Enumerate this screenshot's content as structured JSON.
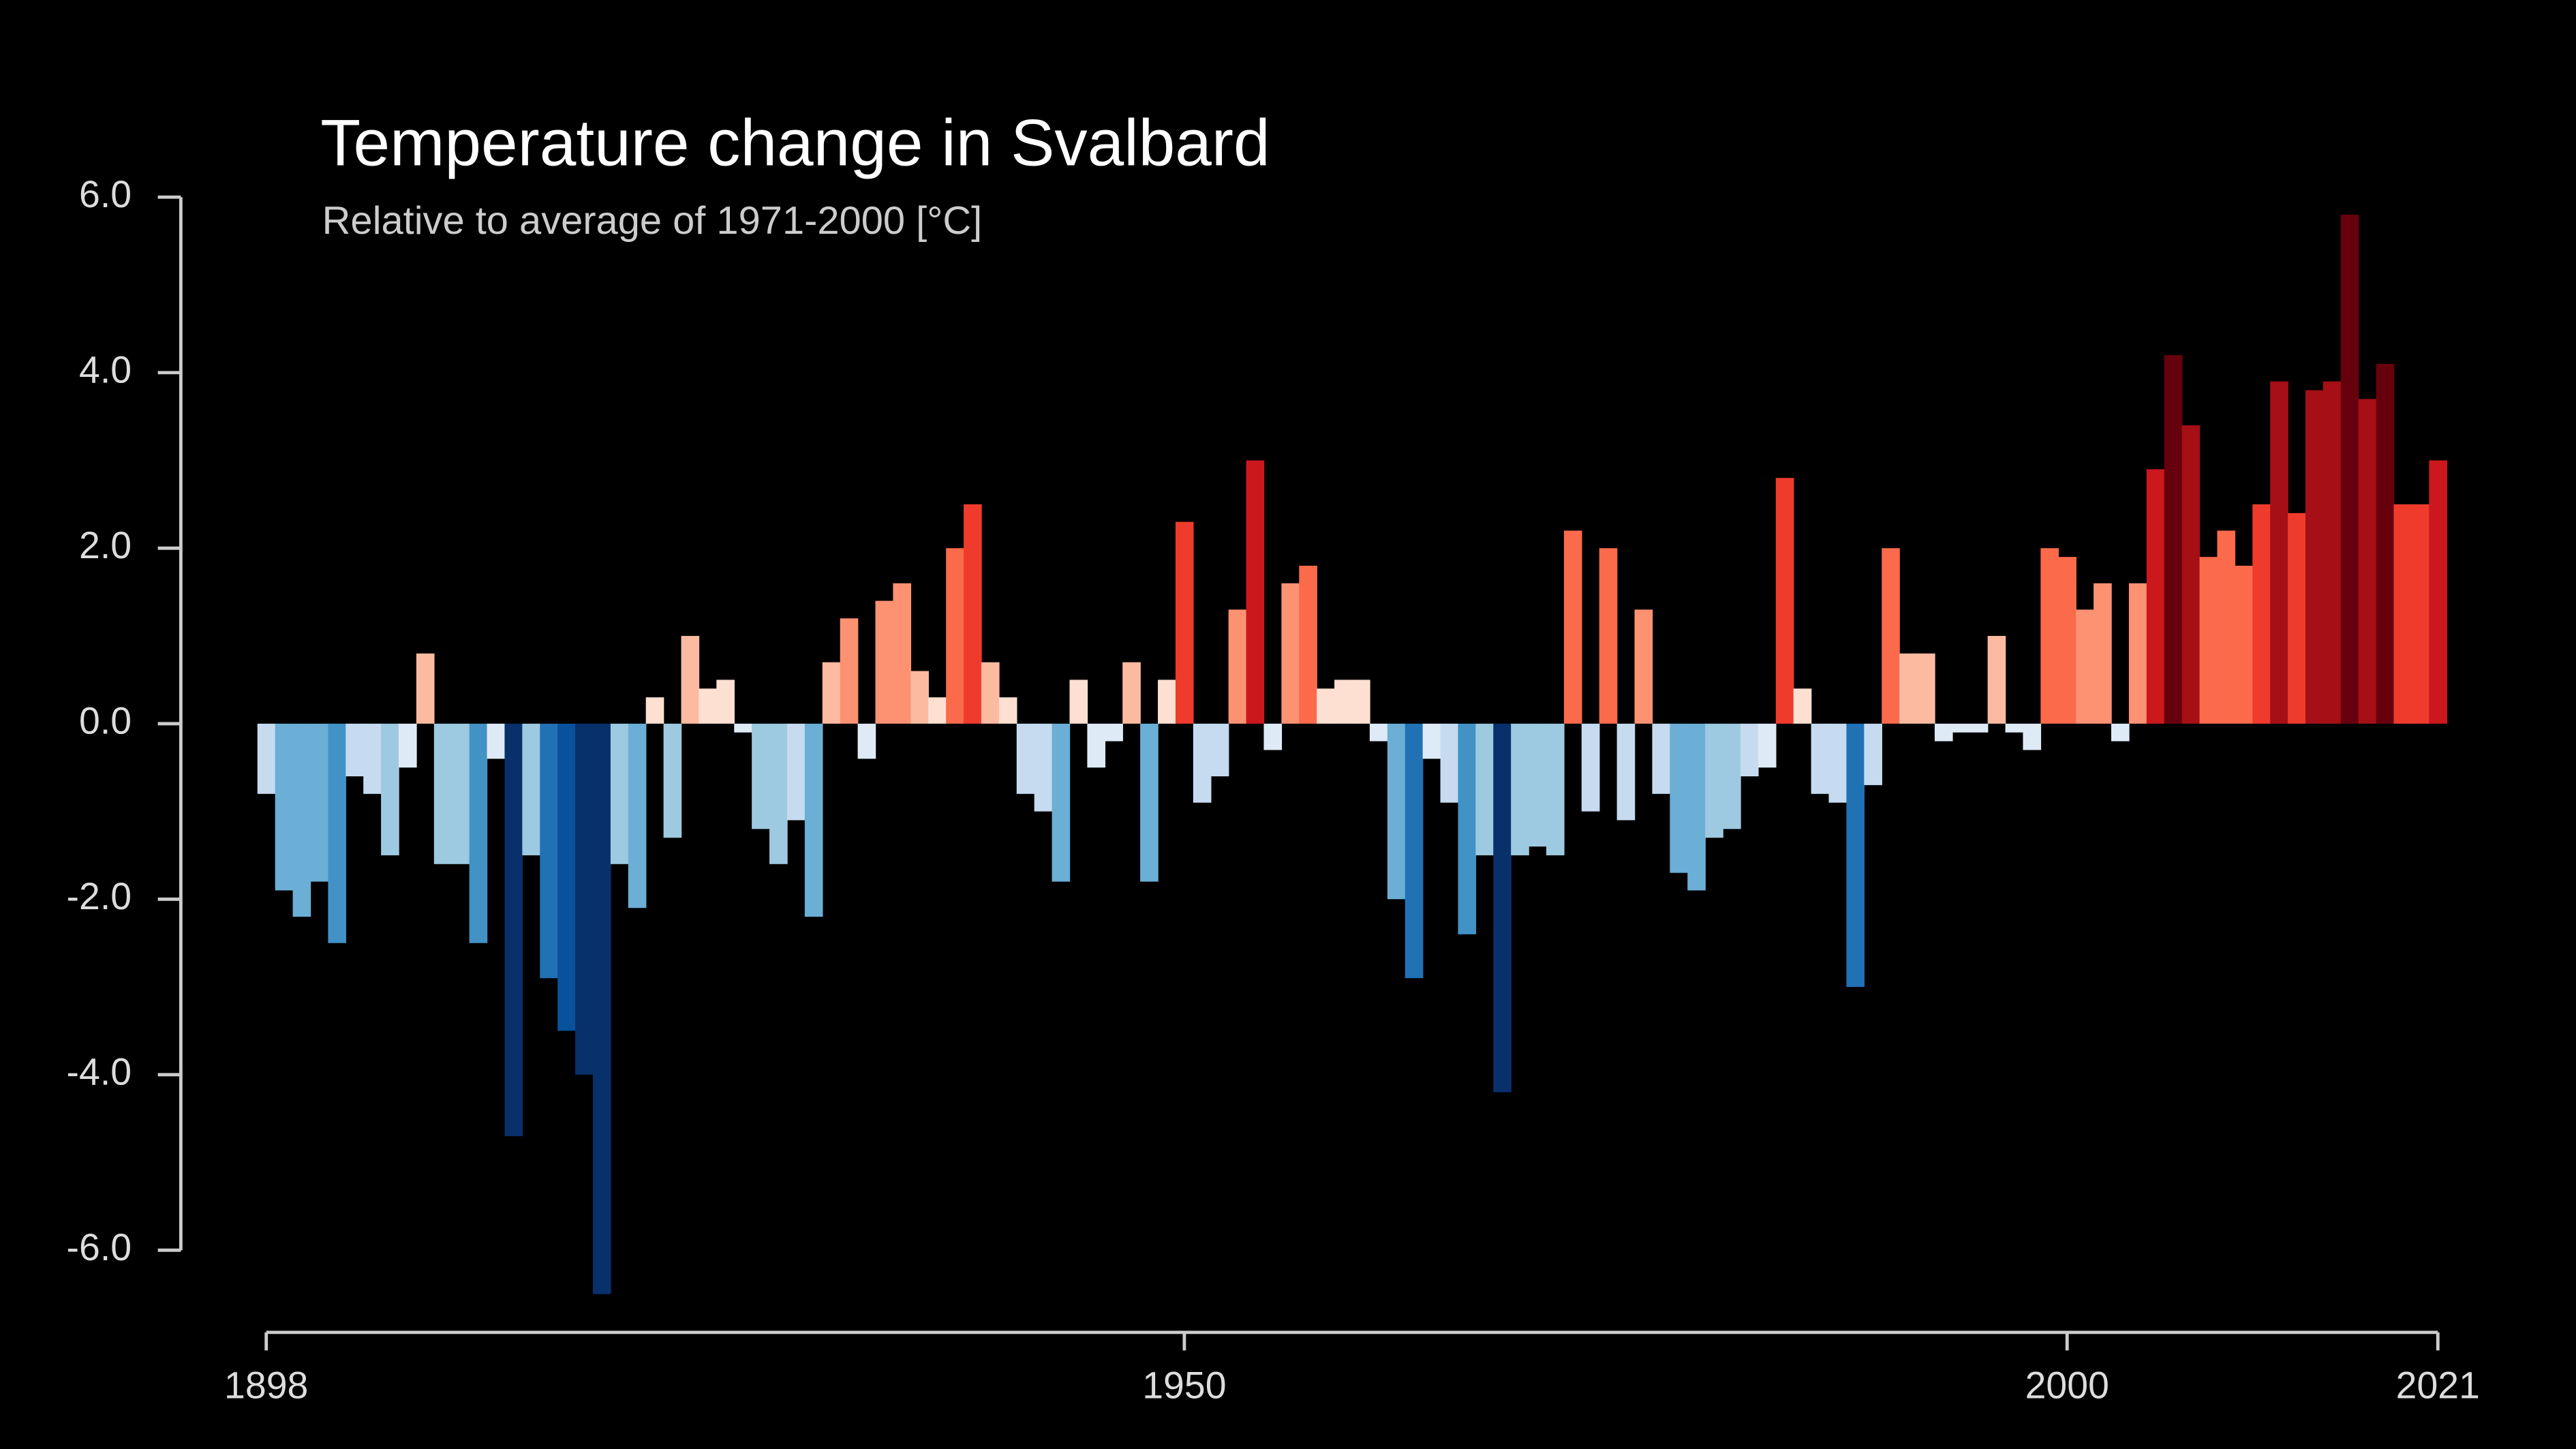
{
  "chart_data": {
    "type": "bar",
    "title": "Temperature change in Svalbard",
    "subtitle": "Relative to average of 1971-2000  [°C]",
    "x": [
      1898,
      1899,
      1900,
      1901,
      1902,
      1903,
      1904,
      1905,
      1906,
      1907,
      1908,
      1909,
      1910,
      1911,
      1912,
      1913,
      1914,
      1915,
      1916,
      1917,
      1918,
      1919,
      1920,
      1921,
      1922,
      1923,
      1924,
      1925,
      1926,
      1927,
      1928,
      1929,
      1930,
      1931,
      1932,
      1933,
      1934,
      1935,
      1936,
      1937,
      1938,
      1939,
      1940,
      1941,
      1942,
      1943,
      1944,
      1945,
      1946,
      1947,
      1948,
      1949,
      1950,
      1951,
      1952,
      1953,
      1954,
      1955,
      1956,
      1957,
      1958,
      1959,
      1960,
      1961,
      1962,
      1963,
      1964,
      1965,
      1966,
      1967,
      1968,
      1969,
      1970,
      1971,
      1972,
      1973,
      1974,
      1975,
      1976,
      1977,
      1978,
      1979,
      1980,
      1981,
      1982,
      1983,
      1984,
      1985,
      1986,
      1987,
      1988,
      1989,
      1990,
      1991,
      1992,
      1993,
      1994,
      1995,
      1996,
      1997,
      1998,
      1999,
      2000,
      2001,
      2002,
      2003,
      2004,
      2005,
      2006,
      2007,
      2008,
      2009,
      2010,
      2011,
      2012,
      2013,
      2014,
      2015,
      2016,
      2017,
      2018,
      2019,
      2020,
      2021
    ],
    "values": [
      -0.8,
      -1.9,
      -2.2,
      -1.8,
      -2.5,
      -0.6,
      -0.8,
      -1.5,
      -0.5,
      0.8,
      -1.6,
      -1.6,
      -2.5,
      -0.4,
      -4.7,
      -1.5,
      -2.9,
      -3.5,
      -4.0,
      -6.5,
      -1.6,
      -2.1,
      0.3,
      -1.3,
      1.0,
      0.4,
      0.5,
      -0.1,
      -1.2,
      -1.6,
      -1.1,
      -2.2,
      0.7,
      1.2,
      -0.4,
      1.4,
      1.6,
      0.6,
      0.3,
      2.0,
      2.5,
      0.7,
      0.3,
      -0.8,
      -1.0,
      -1.8,
      0.5,
      -0.5,
      -0.2,
      0.7,
      -1.8,
      0.5,
      2.3,
      -0.9,
      -0.6,
      1.3,
      3.0,
      -0.3,
      1.6,
      1.8,
      0.4,
      0.5,
      0.5,
      -0.2,
      -2.0,
      -2.9,
      -0.4,
      -0.9,
      -2.4,
      -1.5,
      -4.2,
      -1.5,
      -1.4,
      -1.5,
      2.2,
      -1.0,
      2.0,
      -1.1,
      1.3,
      -0.8,
      -1.7,
      -1.9,
      -1.3,
      -1.2,
      -0.6,
      -0.5,
      2.8,
      0.4,
      -0.8,
      -0.9,
      -3.0,
      -0.7,
      2.0,
      0.8,
      0.8,
      -0.2,
      -0.1,
      -0.1,
      1.0,
      -0.1,
      -0.3,
      2.0,
      1.9,
      1.3,
      1.6,
      -0.2,
      1.6,
      2.9,
      4.2,
      3.4,
      1.9,
      2.2,
      1.8,
      2.5,
      3.9,
      2.4,
      3.8,
      3.9,
      5.8,
      3.7,
      4.1,
      2.5,
      2.5,
      3.0
    ],
    "colors": [
      "#08306b",
      "#08519c",
      "#2171b5",
      "#4292c6",
      "#6baed6",
      "#9ecae1",
      "#c6dbef",
      "#deebf7",
      "#fee0d2",
      "#fcbba1",
      "#fc9272",
      "#fb6a4a",
      "#ef3b2c",
      "#cb181d",
      "#a50f15",
      "#67000d"
    ],
    "xlim": [
      1898,
      2021
    ],
    "xticks": [
      1898,
      1950,
      2000,
      2021
    ],
    "ylim": [
      -6,
      6
    ],
    "yticks": [
      {
        "value": -6,
        "label": "-6.0"
      },
      {
        "value": -4,
        "label": "-4.0"
      },
      {
        "value": -2,
        "label": "-2.0"
      },
      {
        "value": 0,
        "label": "0.0"
      },
      {
        "value": 2,
        "label": "2.0"
      },
      {
        "value": 4,
        "label": "4.0"
      },
      {
        "value": 6,
        "label": "6.0"
      }
    ]
  }
}
